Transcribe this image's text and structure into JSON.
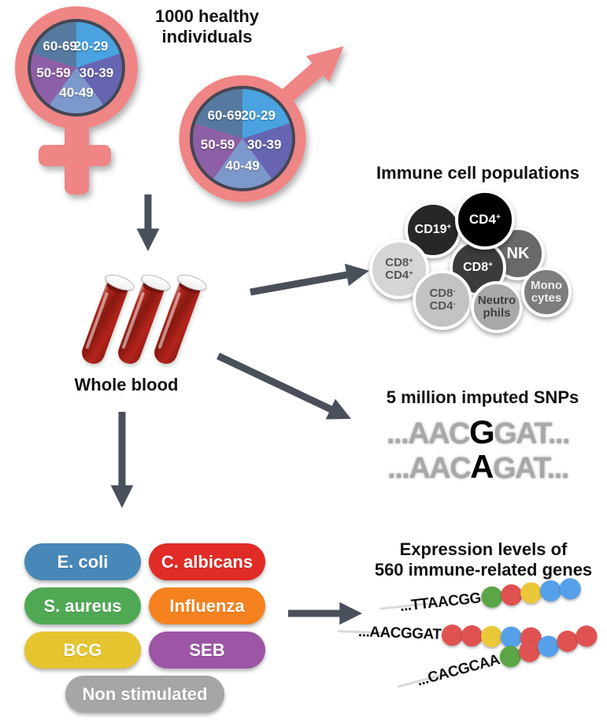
{
  "colors": {
    "symbol_pink": "#ef8585",
    "pie_border": "#454652",
    "arrow_gray": "#4a505a",
    "pie_slices": {
      "20-29": "#4aa3e0",
      "30-39": "#6765b2",
      "40-49": "#7d98cb",
      "50-59": "#8d5fa6",
      "60-69": "#567a9f"
    }
  },
  "population": {
    "title": "1000 healthy individuals",
    "age_groups": [
      "20-29",
      "30-39",
      "40-49",
      "50-59",
      "60-69"
    ],
    "symbols": [
      "female-symbol",
      "male-symbol"
    ]
  },
  "whole_blood": {
    "label": "Whole blood",
    "tube_count": 3
  },
  "immune_cells": {
    "title": "Immune cell populations",
    "cells": [
      {
        "key": "cd19",
        "color": "#272727",
        "text_color": "#ffffff",
        "lines": [
          [
            {
              "t": "CD19"
            },
            {
              "t": "+",
              "sup": true
            }
          ]
        ]
      },
      {
        "key": "nk",
        "color": "#696969",
        "text_color": "#ffffff",
        "lines": [
          [
            {
              "t": "NK"
            }
          ]
        ]
      },
      {
        "key": "cd8",
        "color": "#3b3b3b",
        "text_color": "#ffffff",
        "lines": [
          [
            {
              "t": "CD8"
            },
            {
              "t": "+",
              "sup": true
            }
          ]
        ]
      },
      {
        "key": "cd4",
        "color": "#000000",
        "text_color": "#ffffff",
        "lines": [
          [
            {
              "t": "CD4"
            },
            {
              "t": "+",
              "sup": true
            }
          ]
        ]
      },
      {
        "key": "cd8pos-cd4pos",
        "color": "#d5d5d5",
        "text_color": "#565656",
        "lines": [
          [
            {
              "t": "CD8"
            },
            {
              "t": "+",
              "sup": true
            }
          ],
          [
            {
              "t": "CD4"
            },
            {
              "t": "+",
              "sup": true
            }
          ]
        ]
      },
      {
        "key": "cd8neg-cd4neg",
        "color": "#c3c3c3",
        "text_color": "#565656",
        "lines": [
          [
            {
              "t": "CD8"
            },
            {
              "t": "-",
              "sup": true
            }
          ],
          [
            {
              "t": "CD4"
            },
            {
              "t": "-",
              "sup": true
            }
          ]
        ]
      },
      {
        "key": "neutrophils",
        "color": "#a8a8a8",
        "text_color": "#3f3f3f",
        "lines": [
          [
            {
              "t": "Neutro"
            }
          ],
          [
            {
              "t": "phils"
            }
          ]
        ]
      },
      {
        "key": "monocytes",
        "color": "#7d7d7d",
        "text_color": "#eeeeee",
        "lines": [
          [
            {
              "t": "Mono"
            }
          ],
          [
            {
              "t": "cytes"
            }
          ]
        ]
      }
    ]
  },
  "snps": {
    "title": "5 million imputed SNPs",
    "sequences": [
      {
        "prefix": "...AAC",
        "variant": "G",
        "suffix": "GAT..."
      },
      {
        "prefix": "...AAC",
        "variant": "A",
        "suffix": "GAT..."
      }
    ]
  },
  "stimuli": {
    "items": [
      {
        "label": "E. coli",
        "color": "#4788b8"
      },
      {
        "label": "C. albicans",
        "color": "#e02b26"
      },
      {
        "label": "S. aureus",
        "color": "#4fa953"
      },
      {
        "label": "Influenza",
        "color": "#f5821f"
      },
      {
        "label": "BCG",
        "color": "#e5c42f"
      },
      {
        "label": "SEB",
        "color": "#9d55a5"
      },
      {
        "label": "Non stimulated",
        "color": "#a6a6a6"
      }
    ]
  },
  "expression": {
    "title_line1": "Expression levels of",
    "title_line2": "560 immune-related genes",
    "dot_colors": {
      "green": "#5aa546",
      "red": "#e05252",
      "yellow": "#eac83a",
      "blue": "#55a0e8"
    },
    "rows": [
      {
        "sequence": "...TTAACGG",
        "dots": [
          "green",
          "red",
          "yellow",
          "blue",
          "blue"
        ]
      },
      {
        "sequence": "...AACGGAT",
        "dots": [
          "red",
          "red",
          "yellow",
          "blue",
          "red"
        ]
      },
      {
        "sequence": "...CACGCAA",
        "dots": [
          "green",
          "red",
          "blue",
          "red",
          "red"
        ]
      }
    ]
  }
}
